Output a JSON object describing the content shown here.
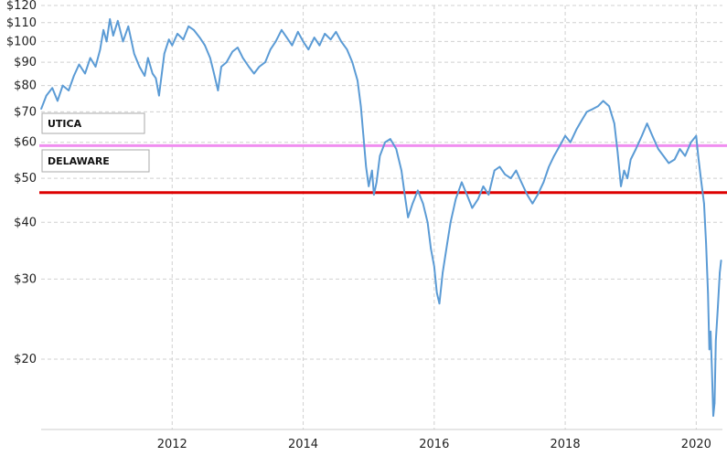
{
  "chart_data": {
    "type": "line",
    "title": "",
    "xlabel": "",
    "ylabel": "",
    "y_scale": "log",
    "ylim": [
      14,
      120
    ],
    "xlim": [
      2010.0,
      2020.4
    ],
    "grid": true,
    "y_ticks": [
      {
        "value": 20,
        "label": "$20"
      },
      {
        "value": 30,
        "label": "$30"
      },
      {
        "value": 40,
        "label": "$40"
      },
      {
        "value": 50,
        "label": "$50"
      },
      {
        "value": 60,
        "label": "$60"
      },
      {
        "value": 70,
        "label": "$70"
      },
      {
        "value": 80,
        "label": "$80"
      },
      {
        "value": 90,
        "label": "$90"
      },
      {
        "value": 100,
        "label": "$100"
      },
      {
        "value": 110,
        "label": "$110"
      },
      {
        "value": 120,
        "label": "$120"
      }
    ],
    "x_ticks": [
      {
        "value": 2012,
        "label": "2012"
      },
      {
        "value": 2014,
        "label": "2014"
      },
      {
        "value": 2016,
        "label": "2016"
      },
      {
        "value": 2018,
        "label": "2018"
      },
      {
        "value": 2020,
        "label": "2020"
      }
    ],
    "reference_lines": [
      {
        "label": "UTICA",
        "value": 59,
        "color": "#f08ef0"
      },
      {
        "label": "DELAWARE",
        "value": 46.5,
        "color": "#dd0000"
      }
    ],
    "series": [
      {
        "color": "#5b9bd5",
        "points": [
          [
            2010.0,
            71
          ],
          [
            2010.08,
            76
          ],
          [
            2010.17,
            79
          ],
          [
            2010.25,
            74
          ],
          [
            2010.33,
            80
          ],
          [
            2010.42,
            78
          ],
          [
            2010.5,
            84
          ],
          [
            2010.58,
            89
          ],
          [
            2010.67,
            85
          ],
          [
            2010.75,
            92
          ],
          [
            2010.83,
            88
          ],
          [
            2010.9,
            96
          ],
          [
            2010.95,
            106
          ],
          [
            2011.0,
            100
          ],
          [
            2011.05,
            112
          ],
          [
            2011.1,
            103
          ],
          [
            2011.17,
            111
          ],
          [
            2011.25,
            100
          ],
          [
            2011.33,
            108
          ],
          [
            2011.42,
            94
          ],
          [
            2011.5,
            88
          ],
          [
            2011.58,
            84
          ],
          [
            2011.63,
            92
          ],
          [
            2011.7,
            85
          ],
          [
            2011.75,
            83
          ],
          [
            2011.8,
            76
          ],
          [
            2011.88,
            94
          ],
          [
            2011.95,
            101
          ],
          [
            2012.0,
            98
          ],
          [
            2012.08,
            104
          ],
          [
            2012.17,
            101
          ],
          [
            2012.25,
            108
          ],
          [
            2012.33,
            106
          ],
          [
            2012.42,
            102
          ],
          [
            2012.5,
            98
          ],
          [
            2012.58,
            92
          ],
          [
            2012.63,
            86
          ],
          [
            2012.7,
            78
          ],
          [
            2012.75,
            88
          ],
          [
            2012.83,
            90
          ],
          [
            2012.92,
            95
          ],
          [
            2013.0,
            97
          ],
          [
            2013.08,
            92
          ],
          [
            2013.17,
            88
          ],
          [
            2013.25,
            85
          ],
          [
            2013.33,
            88
          ],
          [
            2013.42,
            90
          ],
          [
            2013.5,
            96
          ],
          [
            2013.58,
            100
          ],
          [
            2013.67,
            106
          ],
          [
            2013.75,
            102
          ],
          [
            2013.83,
            98
          ],
          [
            2013.92,
            105
          ],
          [
            2014.0,
            100
          ],
          [
            2014.08,
            96
          ],
          [
            2014.17,
            102
          ],
          [
            2014.25,
            98
          ],
          [
            2014.33,
            104
          ],
          [
            2014.42,
            101
          ],
          [
            2014.5,
            105
          ],
          [
            2014.58,
            100
          ],
          [
            2014.67,
            96
          ],
          [
            2014.75,
            90
          ],
          [
            2014.83,
            82
          ],
          [
            2014.88,
            72
          ],
          [
            2014.92,
            62
          ],
          [
            2014.96,
            53
          ],
          [
            2015.0,
            48
          ],
          [
            2015.05,
            52
          ],
          [
            2015.08,
            46
          ],
          [
            2015.12,
            49
          ],
          [
            2015.17,
            56
          ],
          [
            2015.25,
            60
          ],
          [
            2015.33,
            61
          ],
          [
            2015.42,
            58
          ],
          [
            2015.5,
            52
          ],
          [
            2015.55,
            46
          ],
          [
            2015.6,
            41
          ],
          [
            2015.67,
            44
          ],
          [
            2015.75,
            47
          ],
          [
            2015.83,
            44
          ],
          [
            2015.9,
            40
          ],
          [
            2015.95,
            35
          ],
          [
            2016.0,
            32
          ],
          [
            2016.04,
            28
          ],
          [
            2016.08,
            26.5
          ],
          [
            2016.13,
            31
          ],
          [
            2016.2,
            36
          ],
          [
            2016.25,
            40
          ],
          [
            2016.33,
            45
          ],
          [
            2016.42,
            49
          ],
          [
            2016.5,
            46
          ],
          [
            2016.58,
            43
          ],
          [
            2016.67,
            45
          ],
          [
            2016.75,
            48
          ],
          [
            2016.83,
            46
          ],
          [
            2016.92,
            52
          ],
          [
            2017.0,
            53
          ],
          [
            2017.08,
            51
          ],
          [
            2017.17,
            50
          ],
          [
            2017.25,
            52
          ],
          [
            2017.33,
            49
          ],
          [
            2017.42,
            46
          ],
          [
            2017.5,
            44
          ],
          [
            2017.58,
            46
          ],
          [
            2017.67,
            49
          ],
          [
            2017.75,
            53
          ],
          [
            2017.83,
            56
          ],
          [
            2017.92,
            59
          ],
          [
            2018.0,
            62
          ],
          [
            2018.08,
            60
          ],
          [
            2018.17,
            64
          ],
          [
            2018.25,
            67
          ],
          [
            2018.33,
            70
          ],
          [
            2018.42,
            71
          ],
          [
            2018.5,
            72
          ],
          [
            2018.58,
            74
          ],
          [
            2018.67,
            72
          ],
          [
            2018.75,
            66
          ],
          [
            2018.8,
            57
          ],
          [
            2018.85,
            48
          ],
          [
            2018.9,
            52
          ],
          [
            2018.95,
            50
          ],
          [
            2019.0,
            55
          ],
          [
            2019.08,
            58
          ],
          [
            2019.17,
            62
          ],
          [
            2019.25,
            66
          ],
          [
            2019.33,
            62
          ],
          [
            2019.42,
            58
          ],
          [
            2019.5,
            56
          ],
          [
            2019.58,
            54
          ],
          [
            2019.67,
            55
          ],
          [
            2019.75,
            58
          ],
          [
            2019.83,
            56
          ],
          [
            2019.92,
            60
          ],
          [
            2020.0,
            62
          ],
          [
            2020.03,
            56
          ],
          [
            2020.07,
            50
          ],
          [
            2020.12,
            44
          ],
          [
            2020.15,
            36
          ],
          [
            2020.18,
            28
          ],
          [
            2020.2,
            21
          ],
          [
            2020.22,
            23
          ],
          [
            2020.24,
            19
          ],
          [
            2020.26,
            15
          ],
          [
            2020.28,
            16
          ],
          [
            2020.3,
            22
          ],
          [
            2020.33,
            26
          ],
          [
            2020.36,
            31
          ],
          [
            2020.38,
            33
          ]
        ]
      }
    ]
  }
}
